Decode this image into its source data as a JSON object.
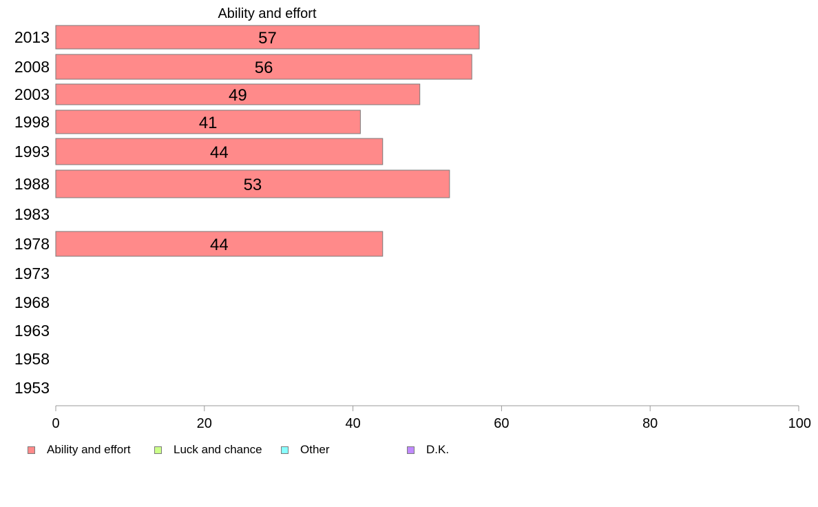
{
  "chart_data": {
    "type": "bar",
    "orientation": "horizontal",
    "title": "Ability and effort",
    "categories": [
      "2013",
      "2008",
      "2003",
      "1998",
      "1993",
      "1988",
      "1983",
      "1978",
      "1973",
      "1968",
      "1963",
      "1958",
      "1953"
    ],
    "series": [
      {
        "name": "Ability and effort",
        "color": "#ff8a8a",
        "values": [
          57,
          56,
          49,
          41,
          44,
          53,
          null,
          44,
          null,
          null,
          null,
          null,
          null
        ],
        "labels": [
          "57",
          "56",
          "49",
          "41",
          "44",
          "53",
          "",
          "44",
          "",
          "",
          "",
          "",
          ""
        ]
      }
    ],
    "xlim": [
      0,
      100
    ],
    "xticks": [
      "0",
      "20",
      "40",
      "60",
      "80",
      "100"
    ],
    "grid": false,
    "legend_position": "bottom",
    "legend": [
      {
        "label": "Ability and effort",
        "color": "#ff8a8a"
      },
      {
        "label": "Luck and chance",
        "color": "#ccff8a"
      },
      {
        "label": "Other",
        "color": "#8affff"
      },
      {
        "label": "D.K.",
        "color": "#c08aff"
      }
    ]
  }
}
